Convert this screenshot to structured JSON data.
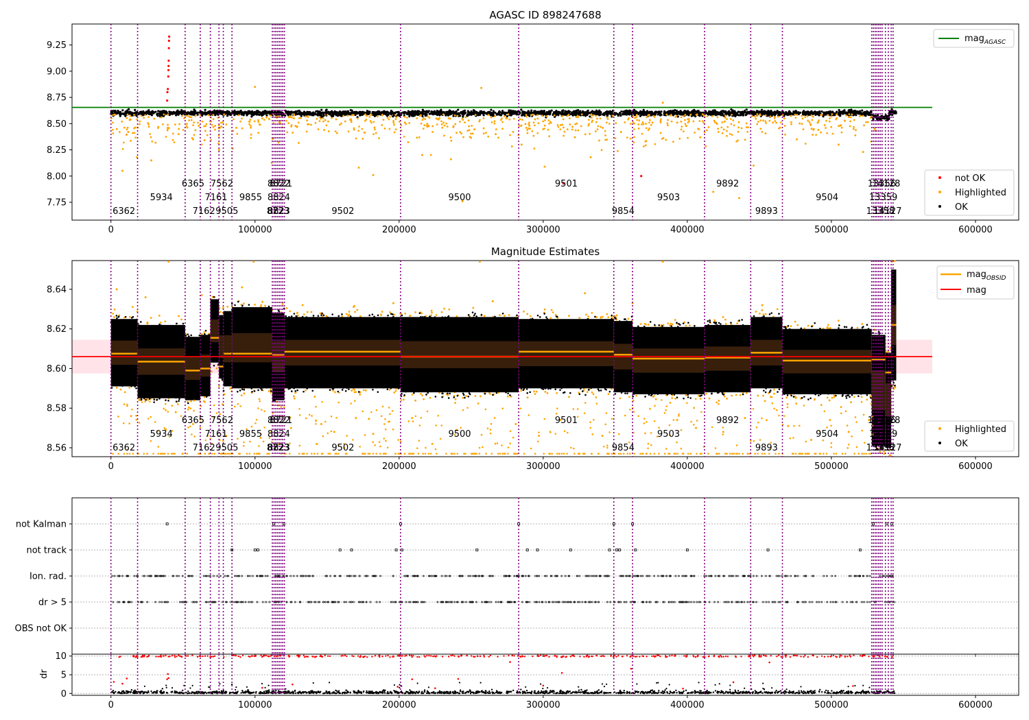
{
  "colors": {
    "ok": "#000000",
    "highlighted": "#ffa500",
    "not_ok": "#ff0000",
    "mag_agasc": "#008000",
    "mag_obsid": "#ffa500",
    "mag": "#ff0000",
    "obsid_lines": "#800080",
    "band": "#ffc0cb"
  },
  "chart_data": [
    {
      "type": "scatter",
      "title": "AGASC ID 898247688",
      "xlabel": "",
      "ylabel": "",
      "xlim": [
        -27000,
        630000
      ],
      "ylim": [
        7.58,
        9.45
      ],
      "xticks": [
        0,
        100000,
        200000,
        300000,
        400000,
        500000,
        600000
      ],
      "yticks": [
        7.75,
        8.0,
        8.25,
        8.5,
        8.75,
        9.0,
        9.25
      ],
      "legend_position": "upper right + lower right",
      "legend": [
        "mag$_{AGASC}$",
        "not OK",
        "Highlighted",
        "OK"
      ],
      "mag_agasc": 8.655,
      "agasc_line_xrange": [
        -27000,
        570000
      ],
      "ok_band": {
        "x": [
          0,
          545000
        ],
        "y": 8.6
      },
      "highlighted_points": [
        [
          8000,
          8.05
        ],
        [
          12000,
          8.42
        ],
        [
          18000,
          8.18
        ],
        [
          28000,
          8.15
        ],
        [
          35000,
          8.56
        ],
        [
          47000,
          8.4
        ],
        [
          57000,
          8.35
        ],
        [
          61000,
          8.48
        ],
        [
          69000,
          8.52
        ],
        [
          75000,
          8.25
        ],
        [
          87000,
          8.46
        ],
        [
          96000,
          8.52
        ],
        [
          100000,
          8.85
        ],
        [
          105000,
          8.55
        ],
        [
          127000,
          8.55
        ],
        [
          148000,
          8.44
        ],
        [
          172000,
          8.08
        ],
        [
          182000,
          8.01
        ],
        [
          204000,
          8.51
        ],
        [
          216000,
          8.2
        ],
        [
          236000,
          8.16
        ],
        [
          244000,
          7.76
        ],
        [
          257000,
          8.84
        ],
        [
          267000,
          8.4
        ],
        [
          285000,
          8.3
        ],
        [
          301000,
          8.09
        ],
        [
          322000,
          8.37
        ],
        [
          333000,
          8.18
        ],
        [
          354000,
          8.42
        ],
        [
          371000,
          8.33
        ],
        [
          383000,
          8.7
        ],
        [
          393000,
          8.51
        ],
        [
          409000,
          8.37
        ],
        [
          418000,
          7.85
        ],
        [
          426000,
          8.52
        ],
        [
          436000,
          7.79
        ],
        [
          446000,
          8.1
        ],
        [
          466000,
          7.97
        ],
        [
          476000,
          8.35
        ],
        [
          491000,
          8.44
        ],
        [
          505000,
          8.3
        ],
        [
          522000,
          8.23
        ],
        [
          530000,
          8.45
        ]
      ],
      "not_ok_points": [
        [
          39000,
          8.72
        ],
        [
          39200,
          8.8
        ],
        [
          39500,
          8.83
        ],
        [
          39800,
          8.95
        ],
        [
          39900,
          9.01
        ],
        [
          40000,
          9.05
        ],
        [
          40100,
          9.1
        ],
        [
          40200,
          9.22
        ],
        [
          40300,
          9.29
        ],
        [
          40400,
          9.33
        ],
        [
          368000,
          8.0
        ],
        [
          314000,
          7.93
        ]
      ],
      "obsid_lines": [
        0,
        18500,
        51500,
        62000,
        69000,
        75000,
        78000,
        84000,
        112000,
        113200,
        114400,
        115600,
        116800,
        118000,
        119200,
        120400,
        201000,
        283000,
        349000,
        362000,
        412000,
        444000,
        466000,
        528000,
        529200,
        530400,
        531600,
        532800,
        534000,
        535200,
        537500,
        539500,
        541500,
        542800
      ],
      "obsid_labels": [
        {
          "x": 9000,
          "row": 0,
          "text": "6362"
        },
        {
          "x": 35000,
          "row": 1,
          "text": "5934"
        },
        {
          "x": 57000,
          "row": 2,
          "text": "6365"
        },
        {
          "x": 64500,
          "row": 0,
          "text": "7162"
        },
        {
          "x": 73000,
          "row": 1,
          "text": "7161"
        },
        {
          "x": 77000,
          "row": 2,
          "text": "7562"
        },
        {
          "x": 80500,
          "row": 0,
          "text": "9505"
        },
        {
          "x": 97000,
          "row": 1,
          "text": "9855"
        },
        {
          "x": 116500,
          "row": 2,
          "text": "8822"
        },
        {
          "x": 116500,
          "row": 1,
          "text": "8824"
        },
        {
          "x": 116500,
          "row": 0,
          "text": "8823"
        },
        {
          "x": 118000,
          "row": 2,
          "text": "8721"
        },
        {
          "x": 116000,
          "row": 0,
          "text": "8723"
        },
        {
          "x": 161000,
          "row": 0,
          "text": "9502"
        },
        {
          "x": 242000,
          "row": 1,
          "text": "9500"
        },
        {
          "x": 316000,
          "row": 2,
          "text": "9501"
        },
        {
          "x": 355500,
          "row": 0,
          "text": "9854"
        },
        {
          "x": 387000,
          "row": 1,
          "text": "9503"
        },
        {
          "x": 428000,
          "row": 2,
          "text": "9892"
        },
        {
          "x": 455000,
          "row": 0,
          "text": "9893"
        },
        {
          "x": 497000,
          "row": 1,
          "text": "9504"
        },
        {
          "x": 535000,
          "row": 2,
          "text": "13356"
        },
        {
          "x": 538000,
          "row": 2,
          "text": "14128"
        },
        {
          "x": 536000,
          "row": 1,
          "text": "13359"
        },
        {
          "x": 534000,
          "row": 0,
          "text": "13358"
        },
        {
          "x": 539000,
          "row": 0,
          "text": "14127"
        }
      ]
    },
    {
      "type": "scatter",
      "title": "Magnitude Estimates",
      "xlabel": "",
      "ylabel": "",
      "xlim": [
        -27000,
        630000
      ],
      "ylim": [
        8.5555,
        8.6545
      ],
      "xticks": [
        0,
        100000,
        200000,
        300000,
        400000,
        500000,
        600000
      ],
      "yticks": [
        8.56,
        8.58,
        8.6,
        8.62,
        8.64
      ],
      "legend_position": "upper right + lower right",
      "legend": [
        "mag$_{OBSID}$",
        "mag",
        "Highlighted",
        "OK"
      ],
      "mag": 8.606,
      "mag_band": [
        8.5975,
        8.6145
      ],
      "mag_line_xrange": [
        -27000,
        570000
      ],
      "segments": [
        {
          "x0": 0,
          "x1": 18500,
          "ylo": 8.591,
          "yhi": 8.625,
          "mag": 8.6075
        },
        {
          "x0": 18500,
          "x1": 51500,
          "ylo": 8.585,
          "yhi": 8.622,
          "mag": 8.6035
        },
        {
          "x0": 51500,
          "x1": 62000,
          "ylo": 8.584,
          "yhi": 8.616,
          "mag": 8.599
        },
        {
          "x0": 62000,
          "x1": 69000,
          "ylo": 8.586,
          "yhi": 8.617,
          "mag": 8.6
        },
        {
          "x0": 69000,
          "x1": 75000,
          "ylo": 8.603,
          "yhi": 8.635,
          "mag": 8.6155
        },
        {
          "x0": 75000,
          "x1": 78000,
          "ylo": 8.595,
          "yhi": 8.627,
          "mag": 8.601
        },
        {
          "x0": 78000,
          "x1": 84000,
          "ylo": 8.591,
          "yhi": 8.629,
          "mag": 8.6075
        },
        {
          "x0": 84000,
          "x1": 112000,
          "ylo": 8.59,
          "yhi": 8.631,
          "mag": 8.6075
        },
        {
          "x0": 112000,
          "x1": 120400,
          "ylo": 8.584,
          "yhi": 8.628,
          "mag": 8.607
        },
        {
          "x0": 120400,
          "x1": 201000,
          "ylo": 8.59,
          "yhi": 8.626,
          "mag": 8.6085
        },
        {
          "x0": 201000,
          "x1": 283000,
          "ylo": 8.588,
          "yhi": 8.626,
          "mag": 8.606
        },
        {
          "x0": 283000,
          "x1": 349000,
          "ylo": 8.59,
          "yhi": 8.625,
          "mag": 8.6085
        },
        {
          "x0": 349000,
          "x1": 362000,
          "ylo": 8.588,
          "yhi": 8.624,
          "mag": 8.607
        },
        {
          "x0": 362000,
          "x1": 412000,
          "ylo": 8.587,
          "yhi": 8.621,
          "mag": 8.605
        },
        {
          "x0": 412000,
          "x1": 444000,
          "ylo": 8.588,
          "yhi": 8.622,
          "mag": 8.6055
        },
        {
          "x0": 444000,
          "x1": 466000,
          "ylo": 8.59,
          "yhi": 8.626,
          "mag": 8.608
        },
        {
          "x0": 466000,
          "x1": 528000,
          "ylo": 8.587,
          "yhi": 8.62,
          "mag": 8.604
        },
        {
          "x0": 528000,
          "x1": 537500,
          "ylo": 8.561,
          "yhi": 8.617,
          "mag": 8.6045
        },
        {
          "x0": 537500,
          "x1": 541500,
          "ylo": 8.56,
          "yhi": 8.608,
          "mag": 8.598
        },
        {
          "x0": 541500,
          "x1": 545000,
          "ylo": 8.594,
          "yhi": 8.65,
          "mag": 8.622
        }
      ],
      "highlighted_floor": 8.557,
      "highlighted_points": [
        [
          40000,
          8.654
        ],
        [
          4000,
          8.64
        ],
        [
          14000,
          8.576
        ],
        [
          24000,
          8.636
        ],
        [
          38000,
          8.569
        ],
        [
          45000,
          8.578
        ],
        [
          57000,
          8.572
        ],
        [
          63000,
          8.637
        ],
        [
          70000,
          8.562
        ],
        [
          80000,
          8.566
        ],
        [
          91000,
          8.641
        ],
        [
          99000,
          8.654
        ],
        [
          104000,
          8.565
        ],
        [
          125000,
          8.57
        ],
        [
          133000,
          8.632
        ],
        [
          146000,
          8.572
        ],
        [
          155000,
          8.568
        ],
        [
          170000,
          8.575
        ],
        [
          182000,
          8.567
        ],
        [
          196000,
          8.633
        ],
        [
          209000,
          8.575
        ],
        [
          223000,
          8.562
        ],
        [
          240000,
          8.569
        ],
        [
          256000,
          8.654
        ],
        [
          265000,
          8.634
        ],
        [
          281000,
          8.572
        ],
        [
          297000,
          8.566
        ],
        [
          312000,
          8.574
        ],
        [
          329000,
          8.638
        ],
        [
          341000,
          8.566
        ],
        [
          362000,
          8.633
        ],
        [
          383000,
          8.654
        ],
        [
          393000,
          8.574
        ],
        [
          406000,
          8.57
        ],
        [
          425000,
          8.568
        ],
        [
          440000,
          8.575
        ],
        [
          452000,
          8.632
        ],
        [
          470000,
          8.571
        ],
        [
          486000,
          8.564
        ],
        [
          499000,
          8.574
        ],
        [
          512000,
          8.568
        ],
        [
          526000,
          8.574
        ],
        [
          542000,
          8.654
        ]
      ],
      "obsid_lines": [
        0,
        18500,
        51500,
        62000,
        69000,
        75000,
        78000,
        84000,
        112000,
        113200,
        114400,
        115600,
        116800,
        118000,
        119200,
        120400,
        201000,
        283000,
        349000,
        362000,
        412000,
        444000,
        466000,
        528000,
        529200,
        530400,
        531600,
        532800,
        534000,
        535200,
        537500,
        539500,
        541500,
        542800
      ],
      "obsid_labels": [
        {
          "x": 9000,
          "row": 0,
          "text": "6362"
        },
        {
          "x": 35000,
          "row": 1,
          "text": "5934"
        },
        {
          "x": 57000,
          "row": 2,
          "text": "6365"
        },
        {
          "x": 64500,
          "row": 0,
          "text": "7162"
        },
        {
          "x": 73000,
          "row": 1,
          "text": "7161"
        },
        {
          "x": 77000,
          "row": 2,
          "text": "7562"
        },
        {
          "x": 80500,
          "row": 0,
          "text": "9505"
        },
        {
          "x": 97000,
          "row": 1,
          "text": "9855"
        },
        {
          "x": 116500,
          "row": 2,
          "text": "8822"
        },
        {
          "x": 116500,
          "row": 1,
          "text": "8824"
        },
        {
          "x": 116500,
          "row": 0,
          "text": "8823"
        },
        {
          "x": 118000,
          "row": 2,
          "text": "8721"
        },
        {
          "x": 116000,
          "row": 0,
          "text": "8723"
        },
        {
          "x": 161000,
          "row": 0,
          "text": "9502"
        },
        {
          "x": 242000,
          "row": 1,
          "text": "9500"
        },
        {
          "x": 316000,
          "row": 2,
          "text": "9501"
        },
        {
          "x": 355500,
          "row": 0,
          "text": "9854"
        },
        {
          "x": 387000,
          "row": 1,
          "text": "9503"
        },
        {
          "x": 428000,
          "row": 2,
          "text": "9892"
        },
        {
          "x": 455000,
          "row": 0,
          "text": "9893"
        },
        {
          "x": 497000,
          "row": 1,
          "text": "9504"
        },
        {
          "x": 535000,
          "row": 2,
          "text": "13356"
        },
        {
          "x": 538000,
          "row": 2,
          "text": "14128"
        },
        {
          "x": 536000,
          "row": 1,
          "text": "13359"
        },
        {
          "x": 534000,
          "row": 0,
          "text": "13358"
        },
        {
          "x": 539000,
          "row": 0,
          "text": "14127"
        }
      ]
    },
    {
      "type": "scatter",
      "title": "",
      "xlabel": "",
      "ylabel": "",
      "xlim": [
        -27000,
        630000
      ],
      "flag_categories": [
        "not Kalman",
        "not track",
        "Ion. rad.",
        "dr > 5",
        "OBS not OK"
      ],
      "grid": "horizontal dotted",
      "not_kalman_x": [
        39000,
        113000,
        120000,
        201000,
        283000,
        349000,
        362000,
        529000,
        538500,
        542000
      ],
      "not_track_x": [
        84000,
        100000,
        102000,
        159000,
        167000,
        198000,
        202000,
        254000,
        289000,
        296000,
        319000,
        346000,
        351000,
        353000,
        364000,
        400000,
        456000,
        520000
      ],
      "obsid_lines": [
        0,
        18500,
        51500,
        62000,
        69000,
        75000,
        78000,
        84000,
        112000,
        113200,
        114400,
        115600,
        116800,
        118000,
        119200,
        120400,
        201000,
        283000,
        349000,
        362000,
        412000,
        444000,
        466000,
        528000,
        529200,
        530400,
        531600,
        532800,
        534000,
        535200,
        537500,
        539500,
        541500,
        542800
      ]
    },
    {
      "type": "scatter",
      "title": "",
      "xlabel": "",
      "ylabel": "dr",
      "xlim": [
        -27000,
        630000
      ],
      "ylim": [
        -0.5,
        10.5
      ],
      "xticks": [
        0,
        100000,
        200000,
        300000,
        400000,
        500000,
        600000
      ],
      "yticks": [
        0,
        5,
        10
      ],
      "grid": "horizontal dotted",
      "dr_points_red": [
        [
          2000,
          3.1
        ],
        [
          8000,
          2.6
        ],
        [
          11000,
          4.0
        ],
        [
          39000,
          3.8
        ],
        [
          39500,
          5.2
        ],
        [
          40000,
          4.1
        ],
        [
          105000,
          1.5
        ],
        [
          126000,
          2.4
        ],
        [
          199000,
          1.8
        ],
        [
          209000,
          3.8
        ],
        [
          225000,
          1.4
        ],
        [
          241000,
          3.9
        ],
        [
          277000,
          8.4
        ],
        [
          300000,
          2.1
        ],
        [
          313000,
          5.5
        ],
        [
          361000,
          6.6
        ],
        [
          397000,
          1.3
        ],
        [
          432000,
          3.0
        ],
        [
          457000,
          8.3
        ],
        [
          515000,
          2.0
        ]
      ],
      "obsid_lines": [
        0,
        18500,
        51500,
        62000,
        69000,
        75000,
        78000,
        84000,
        112000,
        113200,
        114400,
        115600,
        116800,
        118000,
        119200,
        120400,
        201000,
        283000,
        349000,
        362000,
        412000,
        444000,
        466000,
        528000,
        529200,
        530400,
        531600,
        532800,
        534000,
        535200,
        537500,
        539500,
        541500,
        542800
      ]
    }
  ]
}
